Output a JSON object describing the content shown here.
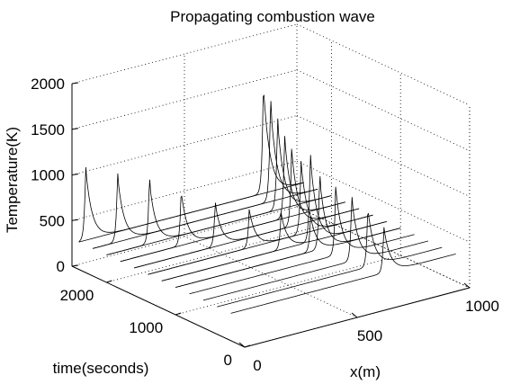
{
  "chart_data": {
    "type": "line",
    "title": "Propagating combustion wave",
    "xlabel": "x(m)",
    "ylabel": "time(seconds)",
    "zlabel": "Temperature(K)",
    "x_ticks": [
      "0",
      "500",
      "1000"
    ],
    "y_ticks": [
      "0",
      "1000",
      "2000"
    ],
    "z_ticks": [
      "0",
      "500",
      "1000",
      "1500",
      "2000"
    ],
    "xlim": [
      0,
      1000
    ],
    "ylim": [
      0,
      2500
    ],
    "zlim": [
      0,
      2000
    ],
    "grid": true,
    "base_temperature": 300,
    "series": [
      {
        "t": 2400,
        "front_x": 30,
        "peak": 1100
      },
      {
        "t": 2200,
        "front_x": 110,
        "peak": 1050
      },
      {
        "t": 2000,
        "front_x": 190,
        "peak": 1000
      },
      {
        "t": 1800,
        "front_x": 270,
        "peak": 900
      },
      {
        "t": 1600,
        "front_x": 360,
        "peak": 780
      },
      {
        "t": 1400,
        "front_x": 450,
        "peak": 720
      },
      {
        "t": 1200,
        "front_x": 530,
        "peak": 700
      },
      {
        "t": 1000,
        "front_x": 600,
        "peak": 690
      },
      {
        "t": 2400,
        "front_x": 820,
        "peak": 1500
      },
      {
        "t": 2200,
        "front_x": 790,
        "peak": 1400
      },
      {
        "t": 2000,
        "front_x": 760,
        "peak": 1300
      },
      {
        "t": 1800,
        "front_x": 730,
        "peak": 1200
      },
      {
        "t": 1600,
        "front_x": 700,
        "peak": 1150
      },
      {
        "t": 1400,
        "front_x": 680,
        "peak": 1100
      },
      {
        "t": 1200,
        "front_x": 660,
        "peak": 1250
      },
      {
        "t": 1000,
        "front_x": 640,
        "peak": 1100
      },
      {
        "t": 800,
        "front_x": 650,
        "peak": 1050
      },
      {
        "t": 600,
        "front_x": 660,
        "peak": 1000
      },
      {
        "t": 400,
        "front_x": 670,
        "peak": 950
      },
      {
        "t": 200,
        "front_x": 680,
        "peak": 800
      }
    ]
  }
}
